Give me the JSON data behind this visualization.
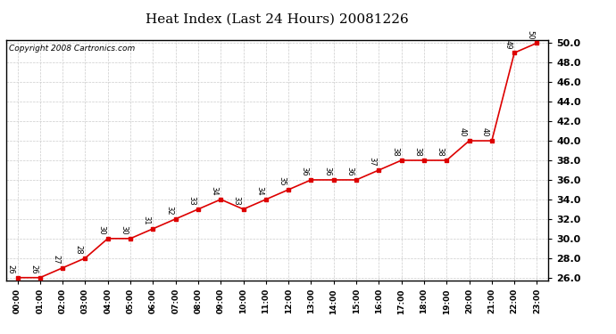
{
  "title": "Heat Index (Last 24 Hours) 20081226",
  "copyright": "Copyright 2008 Cartronics.com",
  "hours": [
    "00:00",
    "01:00",
    "02:00",
    "03:00",
    "04:00",
    "05:00",
    "06:00",
    "07:00",
    "08:00",
    "09:00",
    "10:00",
    "11:00",
    "12:00",
    "13:00",
    "14:00",
    "15:00",
    "16:00",
    "17:00",
    "18:00",
    "19:00",
    "20:00",
    "21:00",
    "22:00",
    "23:00"
  ],
  "values": [
    26,
    26,
    27,
    28,
    30,
    30,
    31,
    32,
    33,
    34,
    33,
    34,
    35,
    36,
    36,
    36,
    37,
    38,
    38,
    38,
    40,
    40,
    49,
    50
  ],
  "ylim_min": 26.0,
  "ylim_max": 50.0,
  "ytick_step": 2.0,
  "line_color": "#dd0000",
  "marker_color": "#dd0000",
  "bg_color": "#ffffff",
  "grid_color": "#cccccc",
  "title_fontsize": 11,
  "annotation_fontsize": 6,
  "copyright_fontsize": 6.5,
  "border_color": "#000000"
}
